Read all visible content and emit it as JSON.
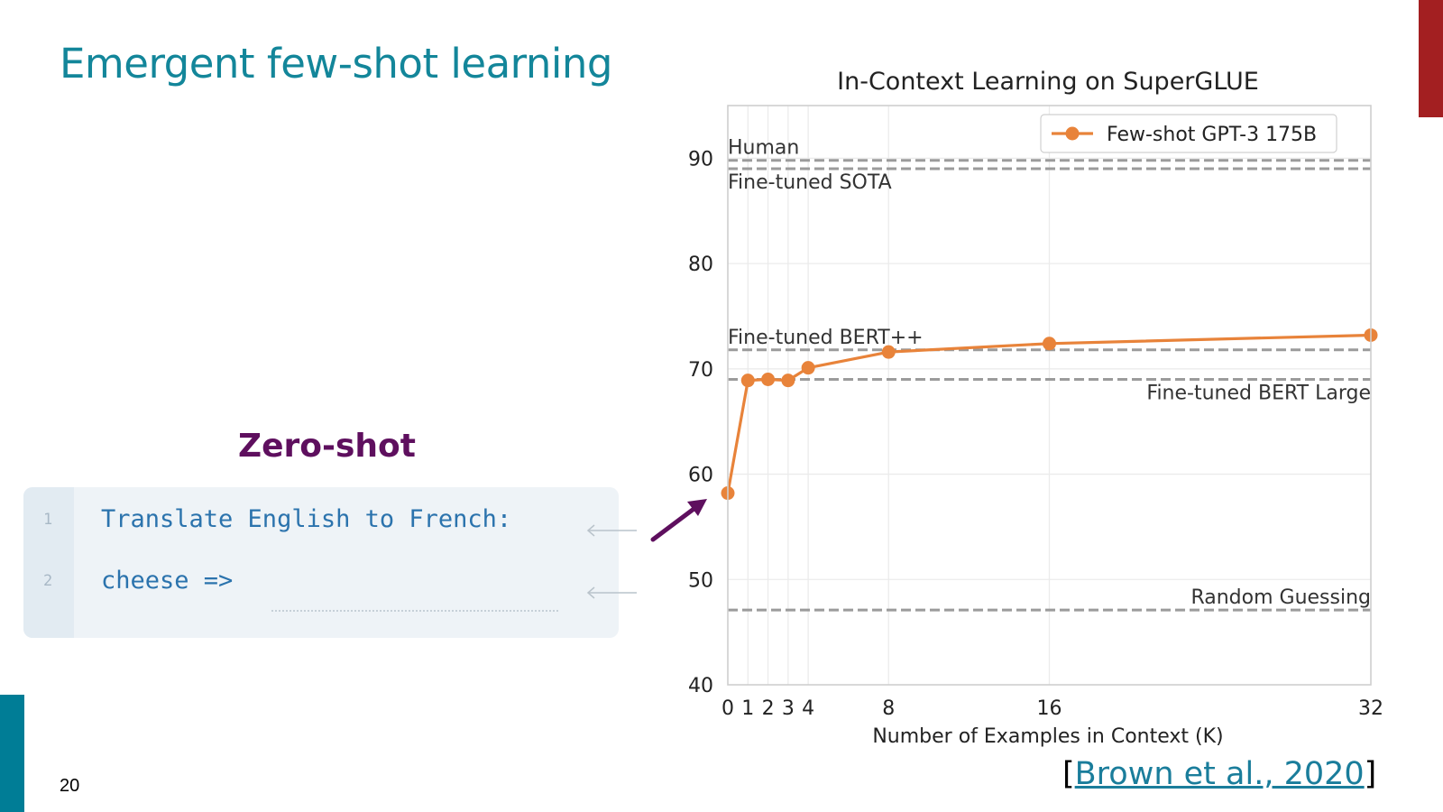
{
  "slide": {
    "title": "Emergent few-shot learning",
    "page_number": "20",
    "accent_color": "#13869a",
    "corner_color": "#a31f21",
    "bar_color": "#007d96"
  },
  "zero_shot": {
    "label": "Zero-shot",
    "label_color": "#5e0f5e",
    "lines": [
      {
        "number": "1",
        "text": "Translate English to French:"
      },
      {
        "number": "2",
        "text": "cheese =>"
      }
    ]
  },
  "chart_data": {
    "type": "line",
    "title": "In-Context Learning on SuperGLUE",
    "xlabel": "Number of Examples in Context (K)",
    "ylabel": "",
    "xlim": [
      0,
      32
    ],
    "ylim": [
      40,
      95
    ],
    "x_ticks": [
      0,
      1,
      2,
      3,
      4,
      8,
      16,
      32
    ],
    "y_ticks": [
      40,
      50,
      60,
      70,
      80,
      90
    ],
    "grid": true,
    "legend_position": "top-right",
    "series": [
      {
        "name": "Few-shot GPT-3 175B",
        "color": "#e8833a",
        "x": [
          0,
          1,
          2,
          3,
          4,
          8,
          16,
          32
        ],
        "y": [
          58.2,
          68.9,
          69.0,
          68.9,
          70.1,
          71.6,
          72.4,
          73.2
        ]
      }
    ],
    "reference_lines": [
      {
        "label": "Human",
        "value": 89.8,
        "label_position": "left-above"
      },
      {
        "label": "Fine-tuned SOTA",
        "value": 89.0,
        "label_position": "left-below"
      },
      {
        "label": "Fine-tuned BERT++",
        "value": 71.8,
        "label_position": "left-above"
      },
      {
        "label": "Fine-tuned BERT Large",
        "value": 69.0,
        "label_position": "right-below"
      },
      {
        "label": "Random Guessing",
        "value": 47.1,
        "label_position": "right-above"
      }
    ]
  },
  "citation": {
    "open": "[",
    "text": "Brown et al., 2020",
    "close": "]"
  }
}
